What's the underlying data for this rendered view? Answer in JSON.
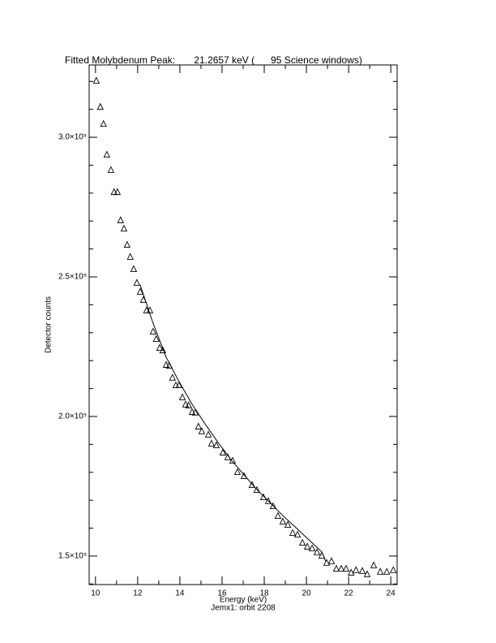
{
  "chart_data": {
    "type": "scatter",
    "title": "Fitted Molybdenum Peak:       21.2657 keV (      95 Science windows)",
    "xlabel": "Energy (keV)",
    "ylabel": "Detector counts",
    "subtitle": "Jemx1: orbit 2208",
    "xlim": [
      9.7,
      24.3
    ],
    "ylim": [
      139800,
      325900
    ],
    "xticks": [
      10,
      12,
      14,
      16,
      18,
      20,
      22,
      24
    ],
    "xminorticks": [
      11,
      13,
      15,
      17,
      19,
      21,
      23
    ],
    "yticks": [
      {
        "value": 150000,
        "label": "1.5×10⁵"
      },
      {
        "value": 200000,
        "label": "2.0×10⁵"
      },
      {
        "value": 250000,
        "label": "2.5×10⁵"
      },
      {
        "value": 300000,
        "label": "3.0×10⁵"
      }
    ],
    "yminorticks": [
      140000,
      160000,
      170000,
      180000,
      190000,
      210000,
      220000,
      230000,
      240000,
      260000,
      270000,
      280000,
      290000,
      310000,
      320000
    ],
    "series": [
      {
        "color": "#000000",
        "marker": "triangle",
        "x": [
          10.04,
          10.23,
          10.38,
          10.54,
          10.73,
          10.88,
          11.04,
          11.19,
          11.35,
          11.5,
          11.65,
          11.81,
          11.96,
          12.12,
          12.27,
          12.42,
          12.58,
          12.73,
          12.88,
          13.04,
          13.19,
          13.35,
          13.5,
          13.65,
          13.81,
          13.96,
          14.12,
          14.27,
          14.42,
          14.58,
          14.73,
          14.88,
          15.04,
          15.35,
          15.5,
          15.73,
          16.04,
          16.27,
          16.5,
          16.73,
          17.04,
          17.42,
          17.65,
          17.96,
          18.19,
          18.42,
          18.65,
          18.88,
          19.12,
          19.35,
          19.58,
          19.81,
          20.04,
          20.27,
          20.5,
          20.73,
          20.96,
          21.19,
          21.42,
          21.65,
          21.88,
          22.12,
          22.35,
          22.65,
          22.88,
          23.19,
          23.5,
          23.81,
          24.12
        ],
        "values": [
          320400,
          311000,
          304900,
          293900,
          288400,
          280500,
          280500,
          270400,
          267400,
          261600,
          257300,
          252900,
          248000,
          244800,
          241900,
          238100,
          238100,
          230500,
          227900,
          224700,
          223800,
          218600,
          218300,
          214000,
          211300,
          211300,
          207000,
          204400,
          204100,
          201700,
          201500,
          196500,
          194800,
          193600,
          190400,
          189800,
          187200,
          185500,
          184300,
          180200,
          178800,
          175600,
          173800,
          171200,
          169800,
          168000,
          164500,
          162500,
          161300,
          158400,
          157800,
          154900,
          153500,
          152900,
          151500,
          150300,
          147700,
          148300,
          145600,
          145600,
          145600,
          144200,
          145100,
          144800,
          143600,
          146800,
          144500,
          144500,
          145100
        ]
      },
      {
        "color": "#000000",
        "line": true,
        "x": [
          12.12,
          12.73,
          13.35,
          13.96,
          14.58,
          15.19,
          15.81,
          16.42,
          17.04,
          17.65,
          18.27,
          18.88,
          19.5,
          20.12,
          20.73,
          20.92
        ],
        "values": [
          247100,
          233400,
          221200,
          212500,
          204400,
          197400,
          190700,
          184600,
          179100,
          173800,
          169200,
          164500,
          160200,
          155800,
          151500,
          148000
        ]
      }
    ]
  }
}
